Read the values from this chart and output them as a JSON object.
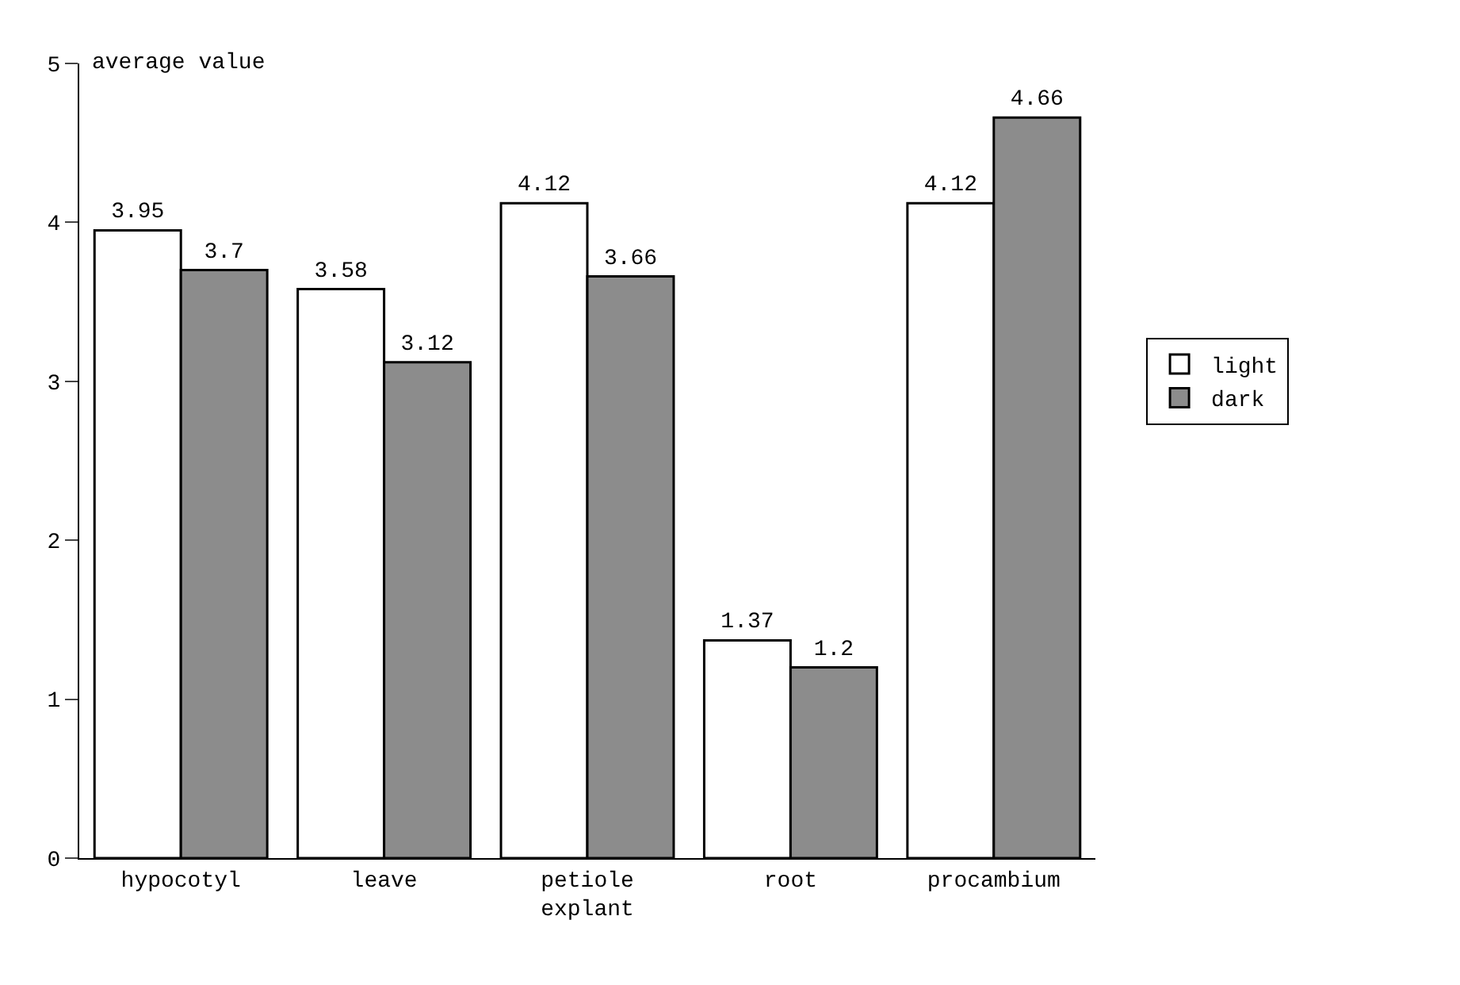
{
  "chart_data": {
    "type": "bar",
    "ylabel": "average value",
    "categories": [
      "hypocotyl",
      "leave",
      "petiole\nexplant",
      "root",
      "procambium"
    ],
    "series": [
      {
        "name": "light",
        "color": "#ffffff",
        "values": [
          3.95,
          3.58,
          4.12,
          1.37,
          4.12
        ]
      },
      {
        "name": "dark",
        "color": "#8c8c8c",
        "values": [
          3.7,
          3.12,
          3.66,
          1.2,
          4.66
        ]
      }
    ],
    "ylim": [
      0,
      5
    ],
    "yticks": [
      0,
      1,
      2,
      3,
      4,
      5
    ],
    "legend": "right",
    "data_labels": true
  }
}
